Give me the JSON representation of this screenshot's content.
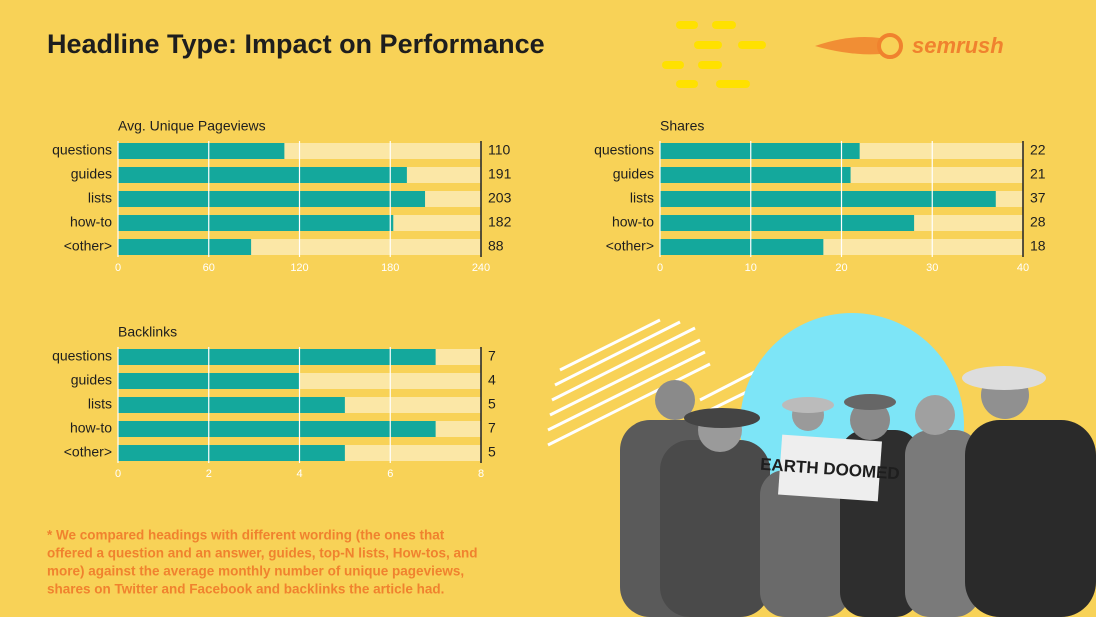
{
  "title": "Headline Type: Impact on Performance",
  "brand": "semrush",
  "photo_headline": "EARTH DOOMED",
  "footnote": [
    "* We compared headings with different wording (the ones that",
    "offered a question and an answer, guides, top-N lists, How-tos, and",
    "more) against the average monthly number of unique pageviews,",
    "shares on Twitter and Facebook and backlinks the article had."
  ],
  "chart_data": [
    {
      "type": "bar",
      "orientation": "horizontal",
      "title": "Avg. Unique Pageviews",
      "categories": [
        "questions",
        "guides",
        "lists",
        "how-to",
        "<other>"
      ],
      "values": [
        110,
        191,
        203,
        182,
        88
      ],
      "color": "#14a89c",
      "track_color": "#fbe7a6",
      "xlim": [
        0,
        240
      ],
      "xticks": [
        0,
        60,
        120,
        180,
        240
      ],
      "grid": true
    },
    {
      "type": "bar",
      "orientation": "horizontal",
      "title": "Shares",
      "categories": [
        "questions",
        "guides",
        "lists",
        "how-to",
        "<other>"
      ],
      "values": [
        22,
        21,
        37,
        28,
        18
      ],
      "color": "#14a89c",
      "track_color": "#fbe7a6",
      "xlim": [
        0,
        40
      ],
      "xticks": [
        0,
        10,
        20,
        30,
        40
      ],
      "grid": true
    },
    {
      "type": "bar",
      "orientation": "horizontal",
      "title": "Backlinks",
      "categories": [
        "questions",
        "guides",
        "lists",
        "how-to",
        "<other>"
      ],
      "values": [
        7,
        4,
        5,
        7,
        5
      ],
      "color": "#14a89c",
      "track_color": "#fbe7a6",
      "xlim": [
        0,
        8
      ],
      "xticks": [
        0,
        2,
        4,
        6,
        8
      ],
      "grid": true
    }
  ]
}
